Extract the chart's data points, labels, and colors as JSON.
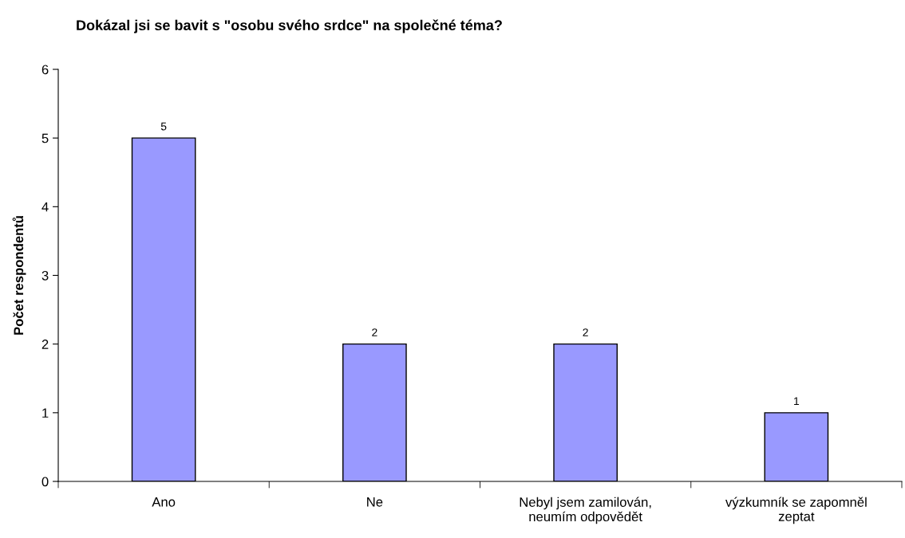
{
  "chart_data": {
    "type": "bar",
    "title": "Dokázal jsi se bavit s \"osobu svého srdce\" na společné téma?",
    "ylabel": "Počet respondentů",
    "categories": [
      "Ano",
      "Ne",
      "Nebyl jsem zamilován,\nneumím odpovědět",
      "výzkumník se zapomněl\nzeptat"
    ],
    "values": [
      5,
      2,
      2,
      1
    ],
    "color": "#9999ff",
    "ylim": [
      0,
      6
    ],
    "yticks": [
      0,
      1,
      2,
      3,
      4,
      5,
      6
    ],
    "grid": false,
    "legend": false,
    "data_labels": true
  }
}
